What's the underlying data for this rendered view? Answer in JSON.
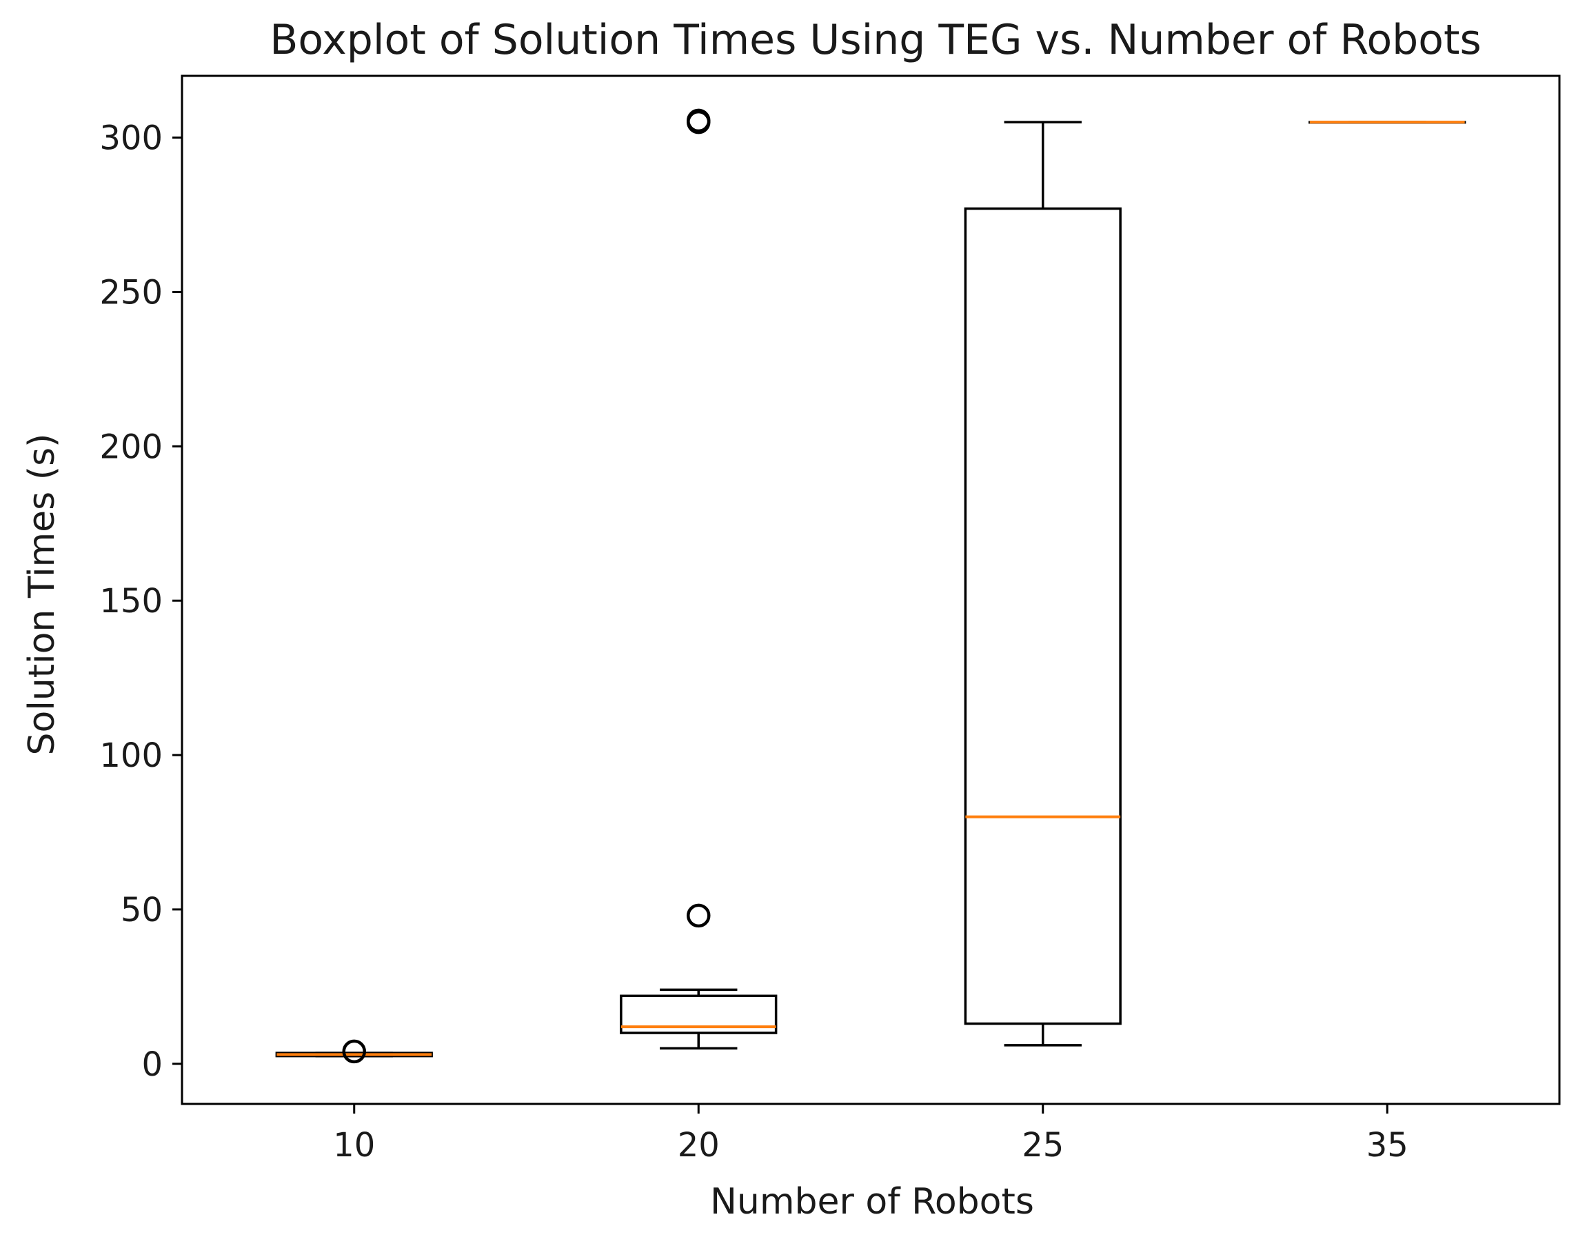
{
  "chart_data": {
    "type": "boxplot",
    "title": "Boxplot of Solution Times Using TEG vs. Number of Robots",
    "xlabel": "Number of Robots",
    "ylabel": "Solution Times (s)",
    "categories": [
      "10",
      "20",
      "25",
      "35"
    ],
    "ylim": [
      -13,
      320
    ],
    "yticks": [
      0,
      50,
      100,
      150,
      200,
      250,
      300
    ],
    "ytick_labels": [
      "0",
      "50",
      "100",
      "150",
      "200",
      "250",
      "300"
    ],
    "grid": false,
    "legend": "none",
    "median_color": "#ff7f0e",
    "box_edge_color": "#000000",
    "boxes": [
      {
        "category": "10",
        "whisker_low": 2.5,
        "q1": 2.5,
        "median": 3,
        "q3": 3.5,
        "whisker_high": 3.5,
        "fliers": [
          4
        ]
      },
      {
        "category": "20",
        "whisker_low": 5,
        "q1": 10,
        "median": 12,
        "q3": 22,
        "whisker_high": 24,
        "fliers": [
          48,
          305,
          305.5
        ]
      },
      {
        "category": "25",
        "whisker_low": 6,
        "q1": 13,
        "median": 80,
        "q3": 277,
        "whisker_high": 305,
        "fliers": []
      },
      {
        "category": "35",
        "whisker_low": 305,
        "q1": 305,
        "median": 305,
        "q3": 305,
        "whisker_high": 305,
        "fliers": []
      }
    ]
  }
}
